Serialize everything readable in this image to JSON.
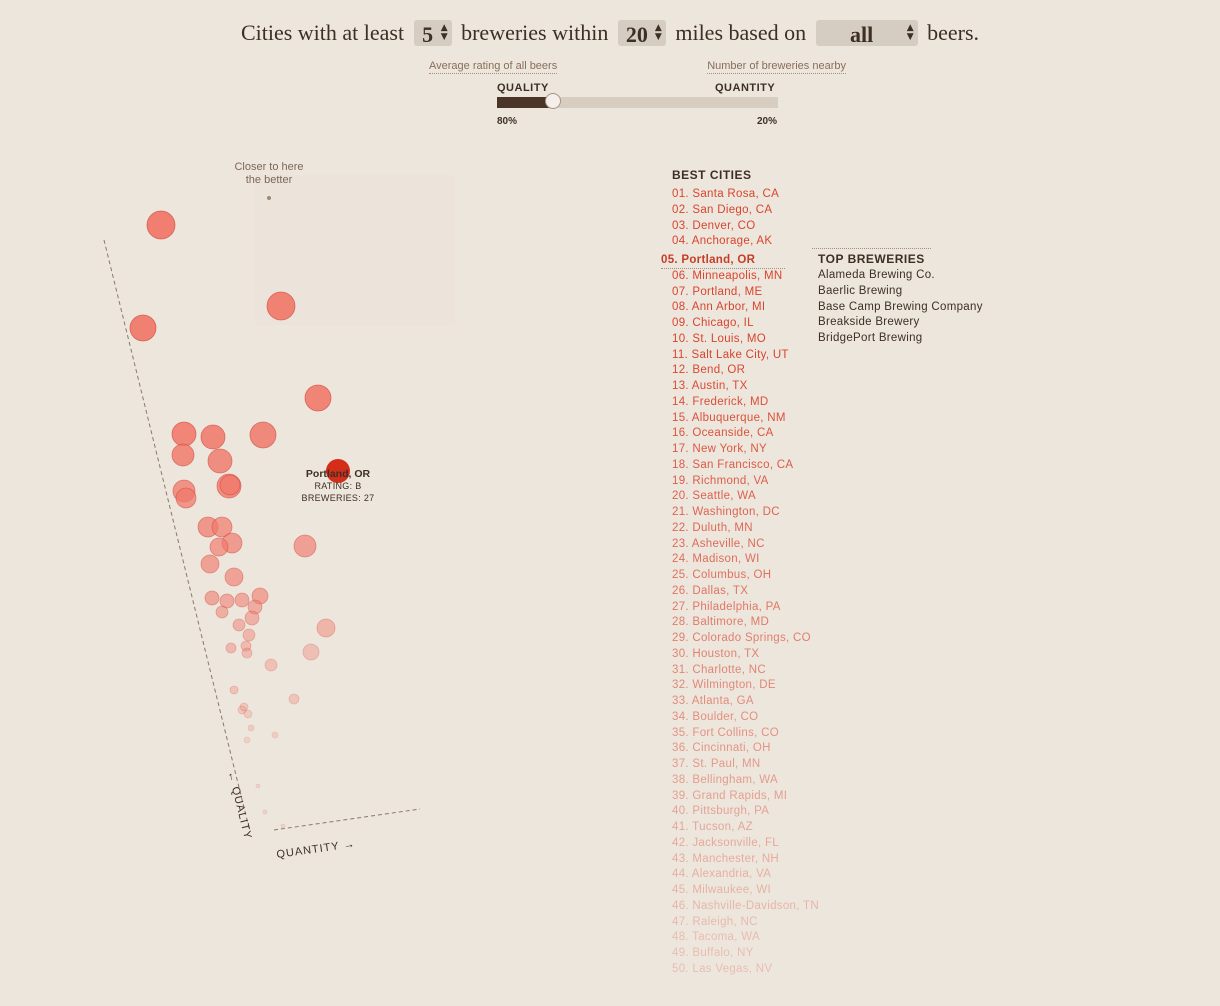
{
  "controls": {
    "text1": "Cities with at least",
    "min_breweries": "5",
    "text2": "breweries within",
    "miles": "20",
    "text3": "miles based on",
    "beer_filter": "all",
    "text4": "beers.",
    "select_arrows": "▲▼"
  },
  "slider": {
    "left_hint": "Average rating of all beers",
    "right_hint": "Number of breweries nearby",
    "left_label": "QUALITY",
    "right_label": "QUANTITY",
    "left_pct": "80%",
    "right_pct": "20%",
    "quality_fraction": 0.2
  },
  "chart_data": {
    "type": "scatter",
    "annotation": "Closer to here\nthe better",
    "xlabel": "QUANTITY →",
    "ylabel": "← QUALITY",
    "tooltip": {
      "city": "Portland, OR",
      "rating": "RATING: B",
      "breweries": "BREWERIES: 27"
    }
  },
  "best_cities": {
    "title": "BEST CITIES",
    "selected_index": 4,
    "items": [
      "01. Santa Rosa, CA",
      "02. San Diego, CA",
      "03. Denver, CO",
      "04. Anchorage, AK",
      "05. Portland, OR",
      "06. Minneapolis, MN",
      "07. Portland, ME",
      "08. Ann Arbor, MI",
      "09. Chicago, IL",
      "10. St. Louis, MO",
      "11. Salt Lake City, UT",
      "12. Bend, OR",
      "13. Austin, TX",
      "14. Frederick, MD",
      "15. Albuquerque, NM",
      "16. Oceanside, CA",
      "17. New York, NY",
      "18. San Francisco, CA",
      "19. Richmond, VA",
      "20. Seattle, WA",
      "21. Washington, DC",
      "22. Duluth, MN",
      "23. Asheville, NC",
      "24. Madison, WI",
      "25. Columbus, OH",
      "26. Dallas, TX",
      "27. Philadelphia, PA",
      "28. Baltimore, MD",
      "29. Colorado Springs, CO",
      "30. Houston, TX",
      "31. Charlotte, NC",
      "32. Wilmington, DE",
      "33. Atlanta, GA",
      "34. Boulder, CO",
      "35. Fort Collins, CO",
      "36. Cincinnati, OH",
      "37. St. Paul, MN",
      "38. Bellingham, WA",
      "39. Grand Rapids, MI",
      "40. Pittsburgh, PA",
      "41. Tucson, AZ",
      "42. Jacksonville, FL",
      "43. Manchester, NH",
      "44. Alexandria, VA",
      "45. Milwaukee, WI",
      "46. Nashville-Davidson, TN",
      "47. Raleigh, NC",
      "48. Tacoma, WA",
      "49. Buffalo, NY",
      "50. Las Vegas, NV"
    ]
  },
  "top_breweries": {
    "title": "TOP BREWERIES",
    "items": [
      "Alameda Brewing Co.",
      "Baerlic Brewing",
      "Base Camp Brewing Company",
      "Breakside Brewery",
      "BridgePort Brewing"
    ]
  },
  "colors": {
    "accent": "#d9442e",
    "dot_fill": "#f0786a",
    "selected_dot": "#d42d1a",
    "text_dark": "#3d2f23",
    "background": "#ede6dd"
  }
}
